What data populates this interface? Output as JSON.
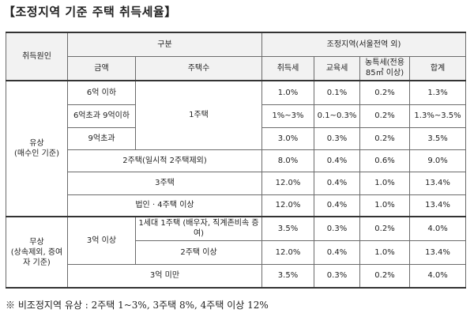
{
  "title": "【조정지역 기준 주택 취득세율】",
  "header": {
    "cause": "취득원인",
    "category": "구분",
    "amount": "금액",
    "houses": "주택수",
    "regulated": "조정지역(서울전역 외)",
    "acq_tax": "취득세",
    "edu_tax": "교육세",
    "rural_tax": "농특세(전용 85㎡ 이상)",
    "total": "합계"
  },
  "sections": {
    "paid": {
      "label": "유상",
      "sublabel": "(매수인 기준)"
    },
    "free": {
      "label": "무상",
      "sublabel": "(상속제외, 증여자 기준)"
    }
  },
  "rows": [
    {
      "amount": "6억 이하",
      "acq": "1.0%",
      "edu": "0.1%",
      "rural": "0.2%",
      "total": "1.3%"
    },
    {
      "amount": "6억초과 9억이하",
      "houses": "1주택",
      "acq": "1%~3%",
      "edu": "0.1~0.3%",
      "rural": "0.2%",
      "total": "1.3%~3.5%"
    },
    {
      "amount": "9억초과",
      "acq": "3.0%",
      "edu": "0.3%",
      "rural": "0.2%",
      "total": "3.5%"
    },
    {
      "category": "2주택(일시적 2주택제외)",
      "acq": "8.0%",
      "edu": "0.4%",
      "rural": "0.6%",
      "total": "9.0%"
    },
    {
      "category": "3주택",
      "acq": "12.0%",
      "edu": "0.4%",
      "rural": "1.0%",
      "total": "13.4%"
    },
    {
      "category": "법인 · 4주택 이상",
      "acq": "12.0%",
      "edu": "0.4%",
      "rural": "1.0%",
      "total": "13.4%"
    },
    {
      "amount": "3억 이상",
      "houses": "1세대 1주택 (배우자, 직계존비속 증여)",
      "acq": "3.5%",
      "edu": "0.3%",
      "rural": "0.2%",
      "total": "4.0%"
    },
    {
      "houses": "2주택 이상",
      "acq": "12.0%",
      "edu": "0.4%",
      "rural": "1.0%",
      "total": "13.4%"
    },
    {
      "category": "3억 미만",
      "acq": "3.5%",
      "edu": "0.3%",
      "rural": "0.2%",
      "total": "4.0%"
    }
  ],
  "footnote": "※ 비조정지역  유상 : 2주택 1~3%, 3주택 8%, 4주택 이상 12%"
}
